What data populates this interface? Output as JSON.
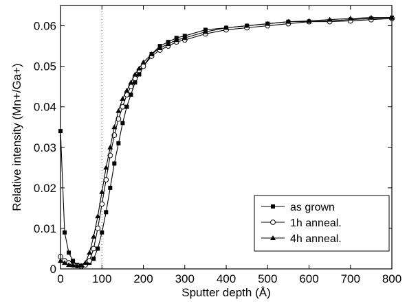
{
  "chart_data": {
    "type": "line",
    "title": "",
    "xlabel": "Sputter depth (Å)",
    "ylabel": "Relative intensity (Mn+/Ga+)",
    "xlim": [
      0,
      800
    ],
    "ylim": [
      0,
      0.065
    ],
    "xticks": [
      "0",
      "100",
      "200",
      "300",
      "400",
      "500",
      "600",
      "700",
      "800"
    ],
    "yticks": [
      "0",
      "0.01",
      "0.02",
      "0.03",
      "0.04",
      "0.05",
      "0.06"
    ],
    "grid": false,
    "legend_position": "bottom-right",
    "reference_line": {
      "x": 100,
      "style": "dotted"
    },
    "series": [
      {
        "name": "as grown",
        "marker": "square-filled",
        "x": [
          0,
          10,
          20,
          30,
          40,
          50,
          60,
          70,
          80,
          90,
          100,
          110,
          120,
          130,
          140,
          150,
          160,
          170,
          180,
          190,
          200,
          220,
          240,
          260,
          280,
          300,
          350,
          400,
          450,
          500,
          550,
          600,
          650,
          700,
          750,
          800
        ],
        "y": [
          0.034,
          0.009,
          0.004,
          0.002,
          0.001,
          0.0008,
          0.001,
          0.0015,
          0.0025,
          0.005,
          0.009,
          0.014,
          0.02,
          0.026,
          0.031,
          0.036,
          0.04,
          0.043,
          0.046,
          0.048,
          0.05,
          0.053,
          0.055,
          0.056,
          0.057,
          0.0575,
          0.059,
          0.0595,
          0.06,
          0.0605,
          0.061,
          0.061,
          0.0612,
          0.0615,
          0.0618,
          0.062
        ]
      },
      {
        "name": "1h anneal.",
        "marker": "circle-open",
        "x": [
          0,
          10,
          20,
          30,
          40,
          50,
          60,
          70,
          80,
          90,
          100,
          110,
          120,
          130,
          140,
          150,
          160,
          170,
          180,
          190,
          200,
          220,
          240,
          260,
          280,
          300,
          350,
          400,
          450,
          500,
          550,
          600,
          650,
          700,
          750,
          800
        ],
        "y": [
          0.003,
          0.002,
          0.0015,
          0.001,
          0.0008,
          0.0006,
          0.001,
          0.002,
          0.005,
          0.01,
          0.016,
          0.022,
          0.028,
          0.033,
          0.037,
          0.04,
          0.043,
          0.045,
          0.047,
          0.049,
          0.05,
          0.0525,
          0.054,
          0.055,
          0.056,
          0.0565,
          0.058,
          0.059,
          0.0595,
          0.06,
          0.0605,
          0.061,
          0.061,
          0.0612,
          0.0615,
          0.0618
        ]
      },
      {
        "name": "4h anneal.",
        "marker": "triangle-filled",
        "x": [
          0,
          10,
          20,
          30,
          40,
          50,
          60,
          70,
          80,
          90,
          100,
          110,
          120,
          130,
          140,
          150,
          160,
          170,
          180,
          190,
          200,
          220,
          240,
          260,
          280,
          300,
          350,
          400,
          450,
          500,
          550,
          600,
          650,
          700,
          750,
          800
        ],
        "y": [
          0.002,
          0.0015,
          0.001,
          0.001,
          0.0008,
          0.0008,
          0.0015,
          0.004,
          0.008,
          0.013,
          0.019,
          0.025,
          0.03,
          0.035,
          0.039,
          0.042,
          0.044,
          0.046,
          0.048,
          0.0495,
          0.051,
          0.053,
          0.0545,
          0.0555,
          0.0565,
          0.057,
          0.0585,
          0.0595,
          0.06,
          0.0605,
          0.061,
          0.0612,
          0.0615,
          0.0618,
          0.062,
          0.062
        ]
      }
    ]
  }
}
